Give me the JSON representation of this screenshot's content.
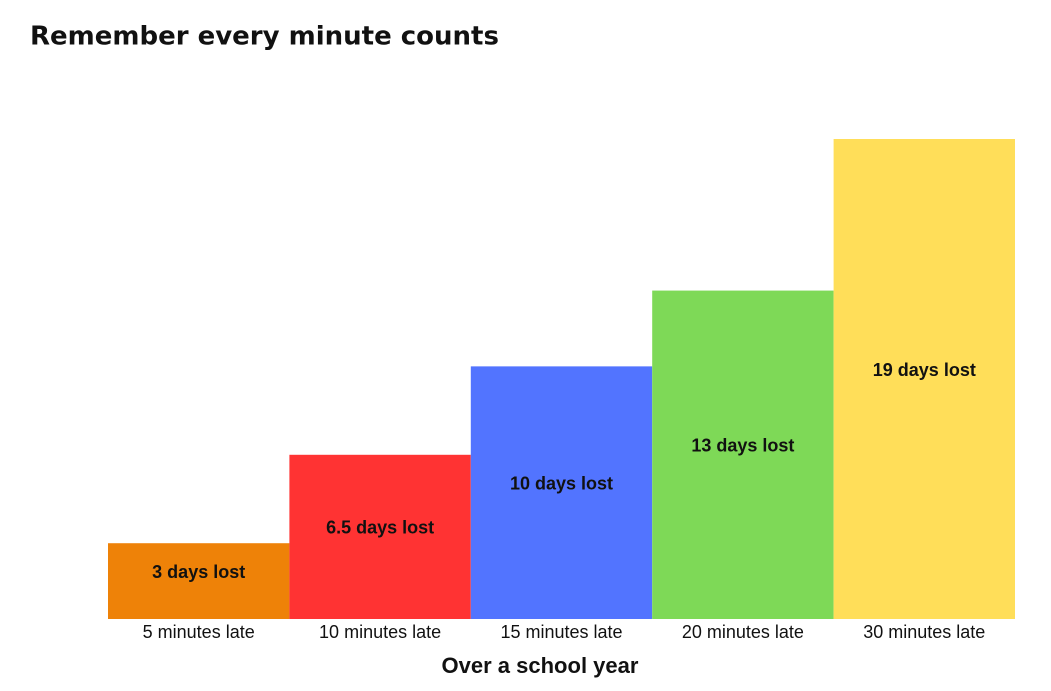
{
  "chart_data": {
    "type": "bar",
    "title": "Remember every minute counts",
    "x_label": "Over a school year",
    "categories": [
      "5 minutes late",
      "10 minutes late",
      "15 minutes late",
      "20 minutes late",
      "30 minutes late"
    ],
    "values": [
      3,
      6.5,
      10,
      13,
      19
    ],
    "value_labels": [
      "3 days lost",
      "6.5 days lost",
      "10 days lost",
      "13 days lost",
      "19 days lost"
    ],
    "colors": [
      "#ee8208",
      "#ff3333",
      "#5274ff",
      "#7ed957",
      "#ffde59"
    ]
  }
}
